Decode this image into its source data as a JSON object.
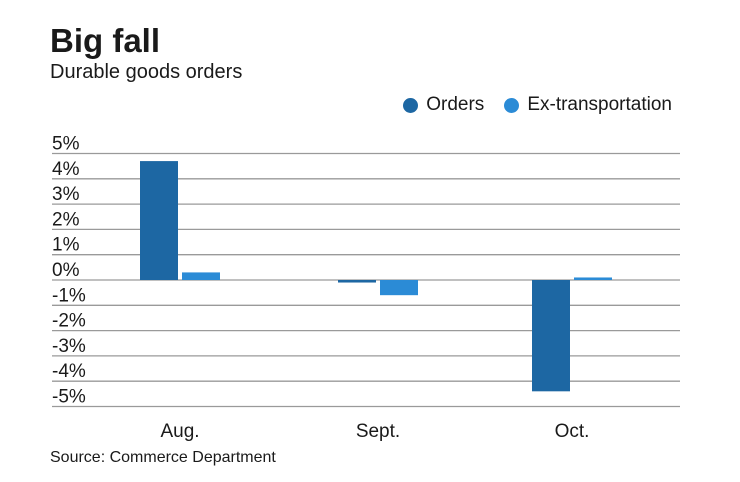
{
  "chart_data": {
    "type": "bar",
    "title": "Big fall",
    "subtitle": "Durable goods orders",
    "categories": [
      "Aug.",
      "Sept.",
      "Oct."
    ],
    "series": [
      {
        "name": "Orders",
        "values": [
          4.7,
          -0.1,
          -4.4
        ],
        "color": "#1d67a3"
      },
      {
        "name": "Ex-transportation",
        "values": [
          0.3,
          -0.6,
          0.1
        ],
        "color": "#2b8bd6"
      }
    ],
    "yticks": [
      "5%",
      "4%",
      "3%",
      "2%",
      "1%",
      "0%",
      "-1%",
      "-2%",
      "-3%",
      "-4%",
      "-5%"
    ],
    "ylim": [
      -5,
      5
    ],
    "grid": true,
    "legend": "top-right",
    "source": "Source: Commerce Department"
  }
}
